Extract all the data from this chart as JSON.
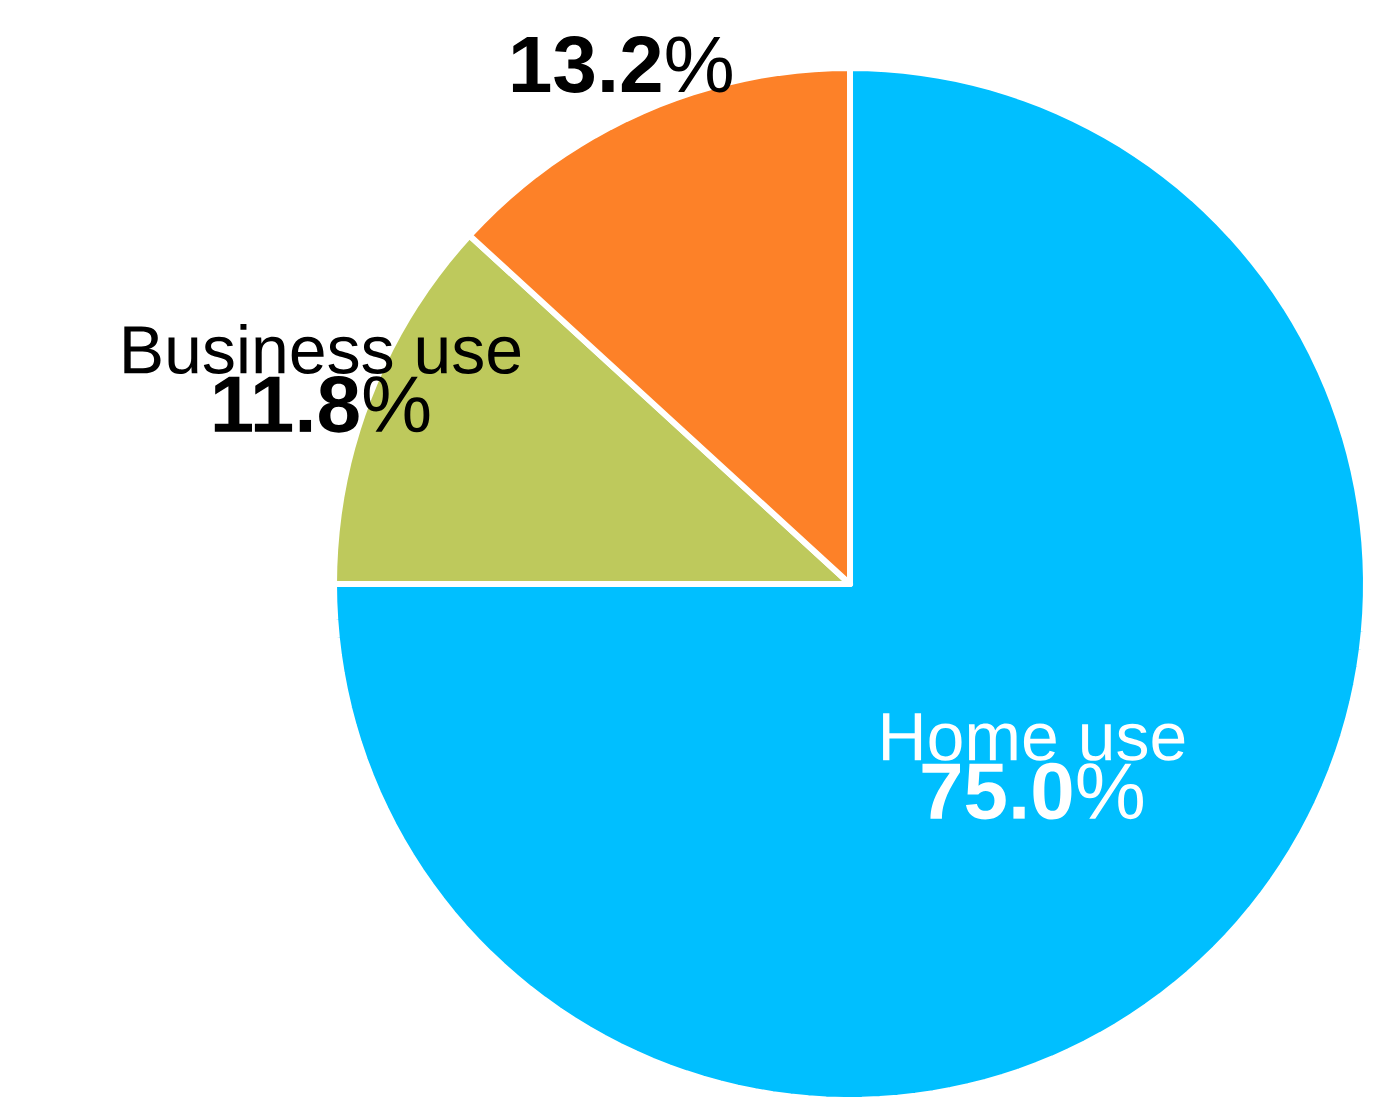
{
  "chart_data": {
    "type": "pie",
    "categories": [
      "Home use",
      "Business use",
      null
    ],
    "values": [
      75.0,
      11.8,
      13.2
    ],
    "colors": [
      "#00bfff",
      "#bec95c",
      "#fd8128"
    ],
    "value_labels": [
      "**75.0**%",
      "**11.8**%",
      "**13.2**%"
    ]
  }
}
